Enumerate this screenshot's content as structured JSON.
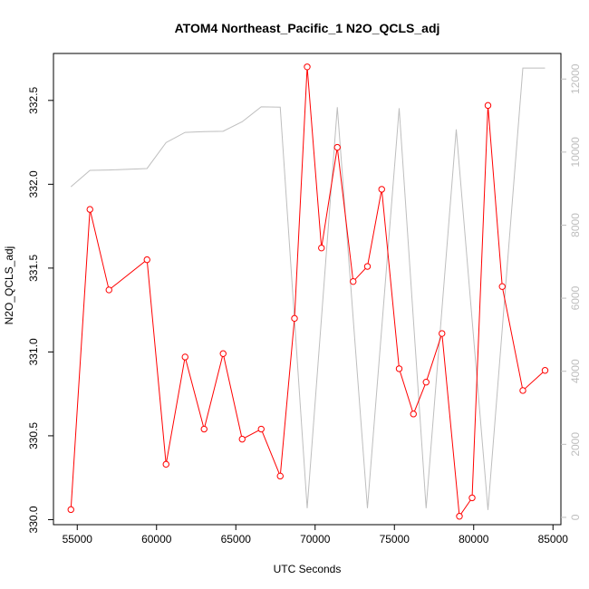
{
  "chart_data": {
    "type": "line",
    "title": "ATOM4 Northeast_Pacific_1 N2O_QCLS_adj",
    "xlabel": "UTC Seconds",
    "ylabel": "N2O_QCLS_adj",
    "xlim": [
      53500,
      85500
    ],
    "ylim": [
      329.97,
      332.78
    ],
    "y2lim": [
      -200,
      12700
    ],
    "x_ticks": [
      55000,
      60000,
      65000,
      70000,
      75000,
      80000,
      85000
    ],
    "y_ticks": [
      330.0,
      330.5,
      331.0,
      331.5,
      332.0,
      332.5
    ],
    "y2_ticks": [
      0,
      2000,
      4000,
      6000,
      8000,
      10000,
      12000
    ],
    "colors": {
      "primary": "#ff0000",
      "secondary": "#bebebe"
    },
    "series": [
      {
        "color": "#ff0000",
        "axis": "left",
        "markers": true,
        "x": [
          54600,
          55800,
          57000,
          59400,
          60600,
          61800,
          63000,
          64200,
          65400,
          66600,
          67800,
          68700,
          69500,
          70400,
          71400,
          72400,
          73300,
          74200,
          75300,
          76200,
          77000,
          78000,
          79100,
          79900,
          80900,
          81800,
          83100,
          84500
        ],
        "y": [
          330.06,
          331.85,
          331.37,
          331.55,
          330.33,
          330.97,
          330.54,
          330.99,
          330.48,
          330.54,
          330.26,
          331.2,
          332.7,
          331.62,
          332.22,
          331.42,
          331.51,
          331.97,
          330.9,
          330.63,
          330.82,
          331.11,
          330.02,
          330.13,
          332.47,
          331.39,
          330.77,
          330.89
        ]
      },
      {
        "color": "#bebebe",
        "axis": "right",
        "markers": false,
        "x": [
          54600,
          55800,
          57000,
          59400,
          60600,
          61800,
          63000,
          64200,
          65400,
          66600,
          67800,
          69500,
          71400,
          73300,
          75300,
          77000,
          78900,
          80900,
          83100,
          84500
        ],
        "y": [
          9050,
          9500,
          9510,
          9550,
          10260,
          10540,
          10560,
          10570,
          10830,
          11240,
          11230,
          250,
          11230,
          250,
          11200,
          250,
          10620,
          200,
          12300,
          12300
        ]
      }
    ]
  }
}
